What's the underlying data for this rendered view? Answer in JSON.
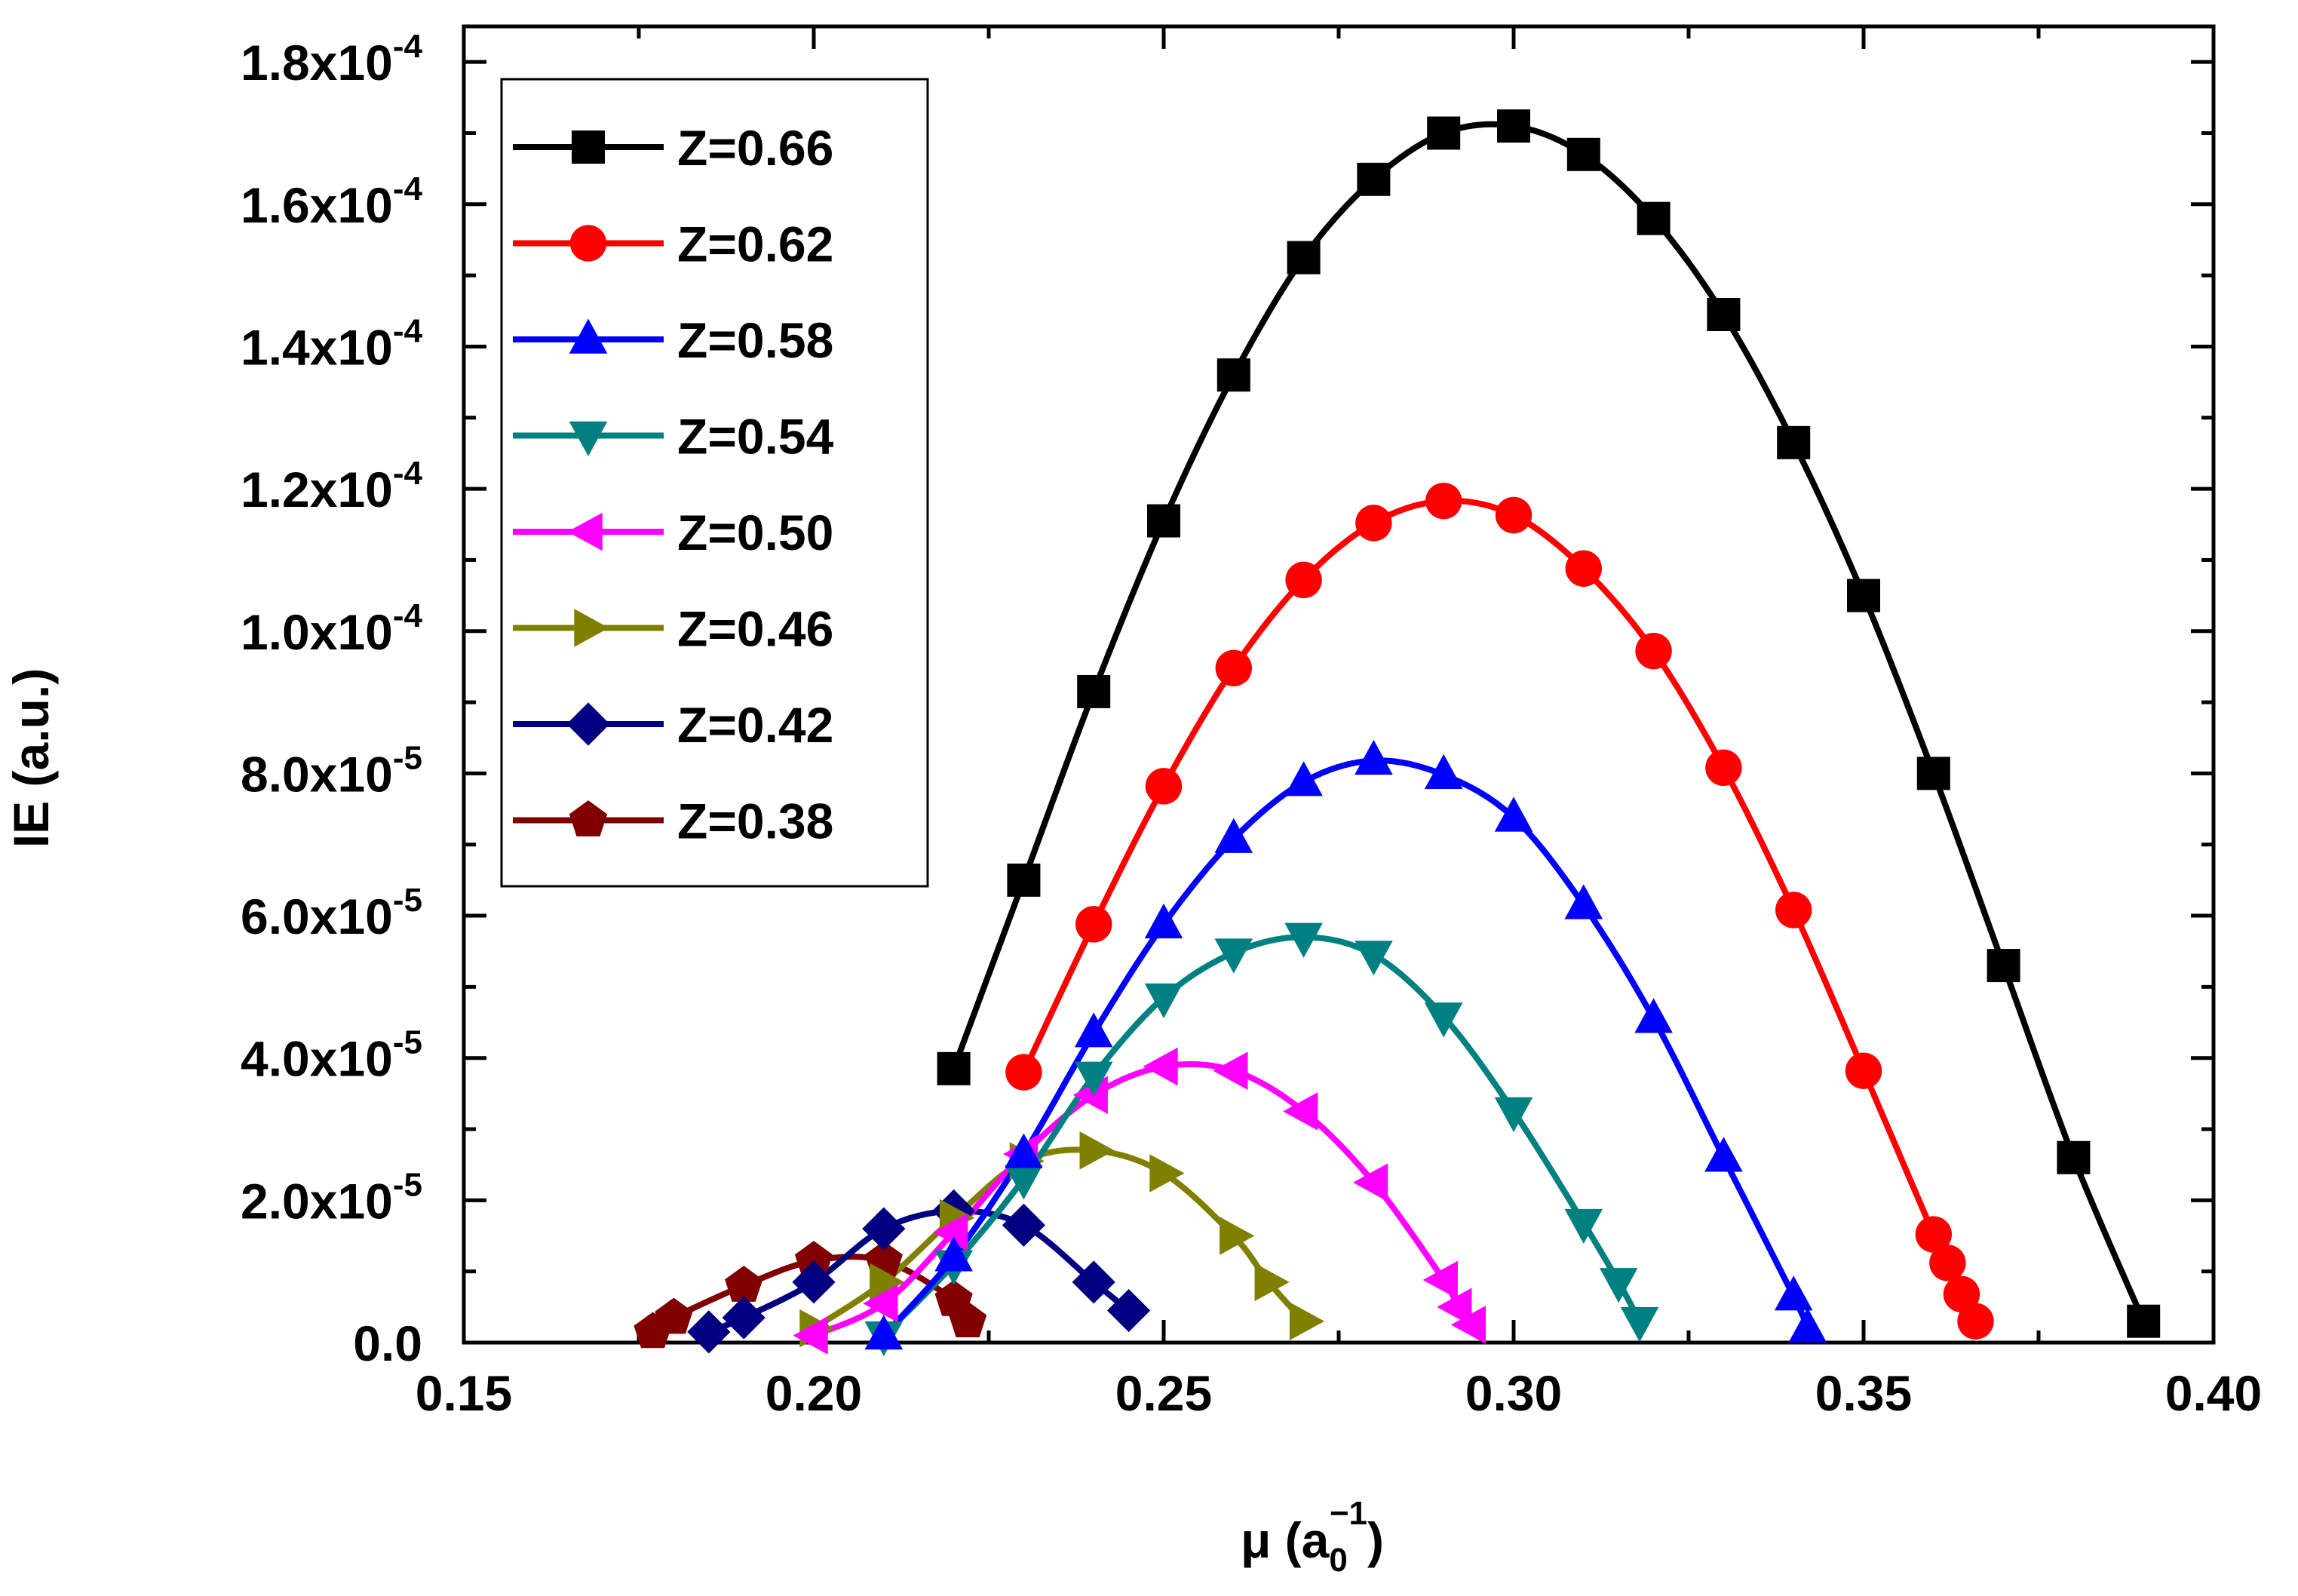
{
  "chart_data": {
    "type": "line",
    "title": "",
    "xlabel": "μ (a",
    "xlabel_sub": "0",
    "xlabel_sup": "−1",
    "xlabel_end": ")",
    "ylabel": "IE (a.u.)",
    "xlim": [
      0.15,
      0.4
    ],
    "ylim": [
      0,
      0.000185
    ],
    "x_ticks": [
      {
        "value": 0.15,
        "label": "0.15"
      },
      {
        "value": 0.2,
        "label": "0.20"
      },
      {
        "value": 0.25,
        "label": "0.25"
      },
      {
        "value": 0.3,
        "label": "0.30"
      },
      {
        "value": 0.35,
        "label": "0.35"
      },
      {
        "value": 0.4,
        "label": "0.40"
      }
    ],
    "y_ticks": [
      {
        "value": 0.0,
        "mant": "0.0",
        "exp": ""
      },
      {
        "value": 2e-05,
        "mant": "2.0x10",
        "exp": "-5"
      },
      {
        "value": 4e-05,
        "mant": "4.0x10",
        "exp": "-5"
      },
      {
        "value": 6e-05,
        "mant": "6.0x10",
        "exp": "-5"
      },
      {
        "value": 8e-05,
        "mant": "8.0x10",
        "exp": "-5"
      },
      {
        "value": 0.0001,
        "mant": "1.0x10",
        "exp": "-4"
      },
      {
        "value": 0.00012,
        "mant": "1.2x10",
        "exp": "-4"
      },
      {
        "value": 0.00014,
        "mant": "1.4x10",
        "exp": "-4"
      },
      {
        "value": 0.00016,
        "mant": "1.6x10",
        "exp": "-4"
      },
      {
        "value": 0.00018,
        "mant": "1.8x10",
        "exp": "-4"
      }
    ],
    "grid": false,
    "legend_position": "top-left",
    "series": [
      {
        "name": "Z=0.66",
        "color": "#000000",
        "marker": "square",
        "x": [
          0.22,
          0.23,
          0.24,
          0.25,
          0.26,
          0.27,
          0.28,
          0.29,
          0.3,
          0.31,
          0.32,
          0.33,
          0.34,
          0.35,
          0.36,
          0.37,
          0.38,
          0.39
        ],
        "y": [
          3.85e-05,
          6.5e-05,
          9.15e-05,
          0.0001155,
          0.000136,
          0.0001525,
          0.0001635,
          0.00017,
          0.000171,
          0.000167,
          0.000158,
          0.0001445,
          0.0001265,
          0.000105,
          8e-05,
          5.3e-05,
          2.6e-05,
          3e-06
        ]
      },
      {
        "name": "Z=0.62",
        "color": "#ff0000",
        "marker": "circle",
        "x": [
          0.23,
          0.24,
          0.25,
          0.26,
          0.27,
          0.28,
          0.29,
          0.3,
          0.31,
          0.32,
          0.33,
          0.34,
          0.35,
          0.36,
          0.362,
          0.364,
          0.366
        ],
        "y": [
          3.8e-05,
          5.88e-05,
          7.82e-05,
          9.48e-05,
          0.0001072,
          0.0001152,
          0.0001183,
          0.0001163,
          0.0001088,
          9.72e-05,
          8.08e-05,
          6.08e-05,
          3.82e-05,
          1.52e-05,
          1.12e-05,
          6.8e-06,
          3e-06
        ]
      },
      {
        "name": "Z=0.58",
        "color": "#0000ff",
        "marker": "triangle-up",
        "x": [
          0.21,
          0.22,
          0.23,
          0.24,
          0.25,
          0.26,
          0.27,
          0.28,
          0.29,
          0.3,
          0.31,
          0.32,
          0.33,
          0.34,
          0.342
        ],
        "y": [
          1e-06,
          1.2e-05,
          2.65e-05,
          4.35e-05,
          5.88e-05,
          7.08e-05,
          7.88e-05,
          8.18e-05,
          7.98e-05,
          7.38e-05,
          6.15e-05,
          4.55e-05,
          2.6e-05,
          6.5e-06,
          2e-06
        ]
      },
      {
        "name": "Z=0.54",
        "color": "#008080",
        "marker": "triangle-down",
        "x": [
          0.21,
          0.22,
          0.23,
          0.24,
          0.25,
          0.26,
          0.27,
          0.28,
          0.29,
          0.3,
          0.31,
          0.315,
          0.318
        ],
        "y": [
          1e-06,
          1.1e-05,
          2.3e-05,
          3.75e-05,
          4.85e-05,
          5.48e-05,
          5.7e-05,
          5.45e-05,
          4.58e-05,
          3.25e-05,
          1.68e-05,
          8.5e-06,
          3e-06
        ]
      },
      {
        "name": "Z=0.50",
        "color": "#ff00ff",
        "marker": "triangle-left",
        "x": [
          0.2,
          0.21,
          0.22,
          0.23,
          0.24,
          0.25,
          0.26,
          0.27,
          0.28,
          0.29,
          0.292,
          0.294
        ],
        "y": [
          1e-06,
          5.5e-06,
          1.55e-05,
          2.65e-05,
          3.48e-05,
          3.88e-05,
          3.82e-05,
          3.25e-05,
          2.25e-05,
          8.8e-06,
          5e-06,
          2.5e-06
        ]
      },
      {
        "name": "Z=0.46",
        "color": "#808000",
        "marker": "triangle-right",
        "x": [
          0.2,
          0.21,
          0.22,
          0.23,
          0.24,
          0.25,
          0.26,
          0.265,
          0.27
        ],
        "y": [
          2e-06,
          8.5e-06,
          1.75e-05,
          2.55e-05,
          2.7e-05,
          2.38e-05,
          1.5e-05,
          8.5e-06,
          3e-06
        ]
      },
      {
        "name": "Z=0.42",
        "color": "#000080",
        "marker": "diamond",
        "x": [
          0.185,
          0.19,
          0.2,
          0.21,
          0.22,
          0.23,
          0.24,
          0.245
        ],
        "y": [
          1.5e-06,
          3.5e-06,
          8.5e-06,
          1.6e-05,
          1.85e-05,
          1.65e-05,
          8.5e-06,
          4.5e-06
        ]
      },
      {
        "name": "Z=0.38",
        "color": "#800000",
        "marker": "pentagon",
        "x": [
          0.177,
          0.18,
          0.19,
          0.2,
          0.21,
          0.22,
          0.222
        ],
        "y": [
          1.5e-06,
          3.5e-06,
          8e-06,
          1.15e-05,
          1.15e-05,
          6e-06,
          3e-06
        ]
      }
    ]
  }
}
